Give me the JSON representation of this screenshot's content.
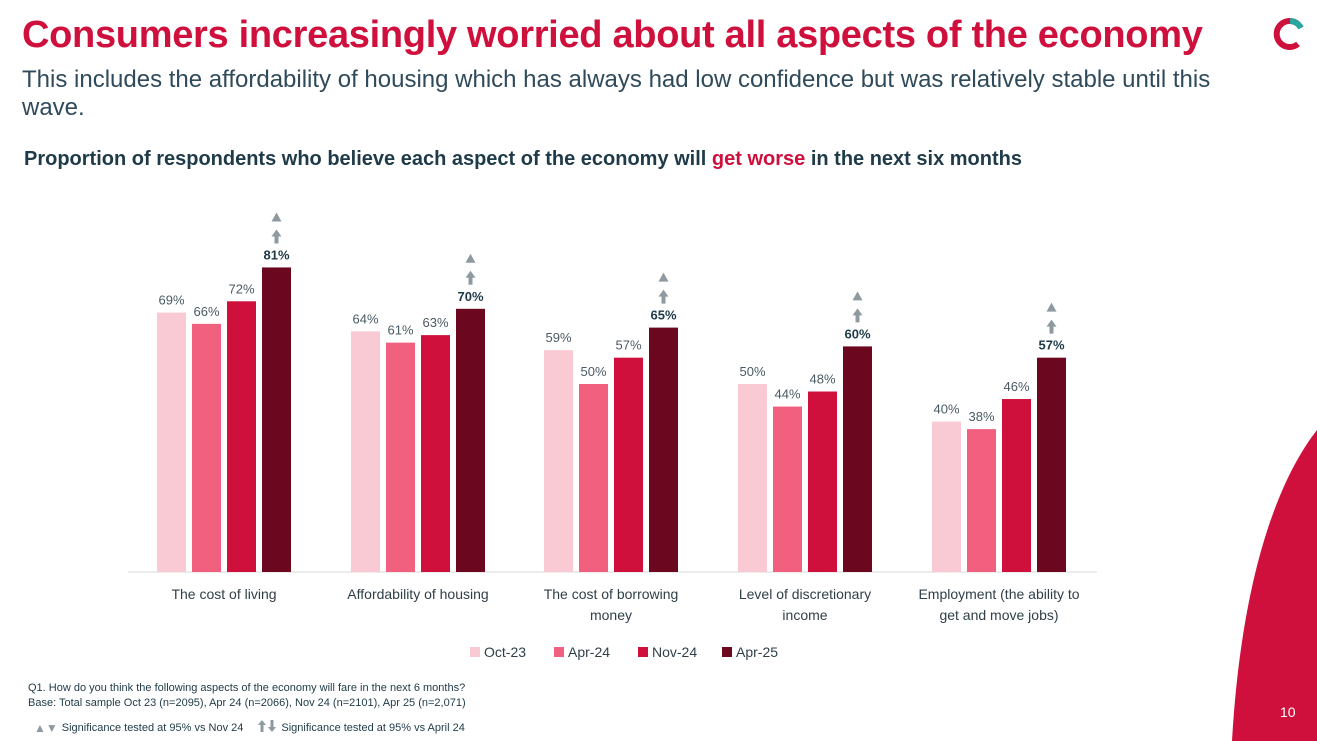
{
  "title": "Consumers increasingly worried about all aspects of the economy",
  "subtitle": "This includes the affordability of housing which has always had low confidence but was relatively stable until this wave.",
  "chart_heading": {
    "prefix": "Proportion of respondents who believe each aspect of the economy will",
    "accent": "get worse",
    "suffix": "in the next six months"
  },
  "chart_data": {
    "type": "bar",
    "categories": [
      [
        "The cost of living"
      ],
      [
        "Affordability of housing"
      ],
      [
        "The cost of borrowing",
        "money"
      ],
      [
        "Level of discretionary",
        "income"
      ],
      [
        "Employment (the ability to",
        "get and move jobs)"
      ]
    ],
    "series": [
      {
        "name": "Oct-23",
        "color": "#f9c9d4",
        "values": [
          69,
          64,
          59,
          50,
          40
        ]
      },
      {
        "name": "Apr-24",
        "color": "#f2607f",
        "values": [
          66,
          61,
          50,
          44,
          38
        ]
      },
      {
        "name": "Nov-24",
        "color": "#cf0f3c",
        "values": [
          72,
          63,
          57,
          48,
          46
        ]
      },
      {
        "name": "Apr-25",
        "color": "#6b0820",
        "values": [
          81,
          70,
          65,
          60,
          57
        ]
      }
    ],
    "value_suffix": "%",
    "ylim": [
      0,
      100
    ],
    "legend_position": "bottom",
    "grid": false,
    "significance": {
      "series": "Apr-25",
      "up_vs_nov24": [
        true,
        true,
        true,
        true,
        true
      ],
      "up_vs_apr24": [
        true,
        true,
        true,
        true,
        true
      ]
    }
  },
  "footnotes": {
    "question": "Q1. How do you think the following aspects of the economy will fare in the next 6 months?",
    "base": "Base: Total sample Oct 23 (n=2095), Apr 24 (n=2066), Nov 24 (n=2101), Apr 25 (n=2,071)",
    "sig_nov": "Significance tested at 95% vs Nov 24",
    "sig_apr": "Significance tested at 95% vs April 24"
  },
  "page_number": "10",
  "colors": {
    "brand": "#cf0f3c",
    "teal": "#2aa6a0",
    "dark_text": "#1f3a48"
  }
}
